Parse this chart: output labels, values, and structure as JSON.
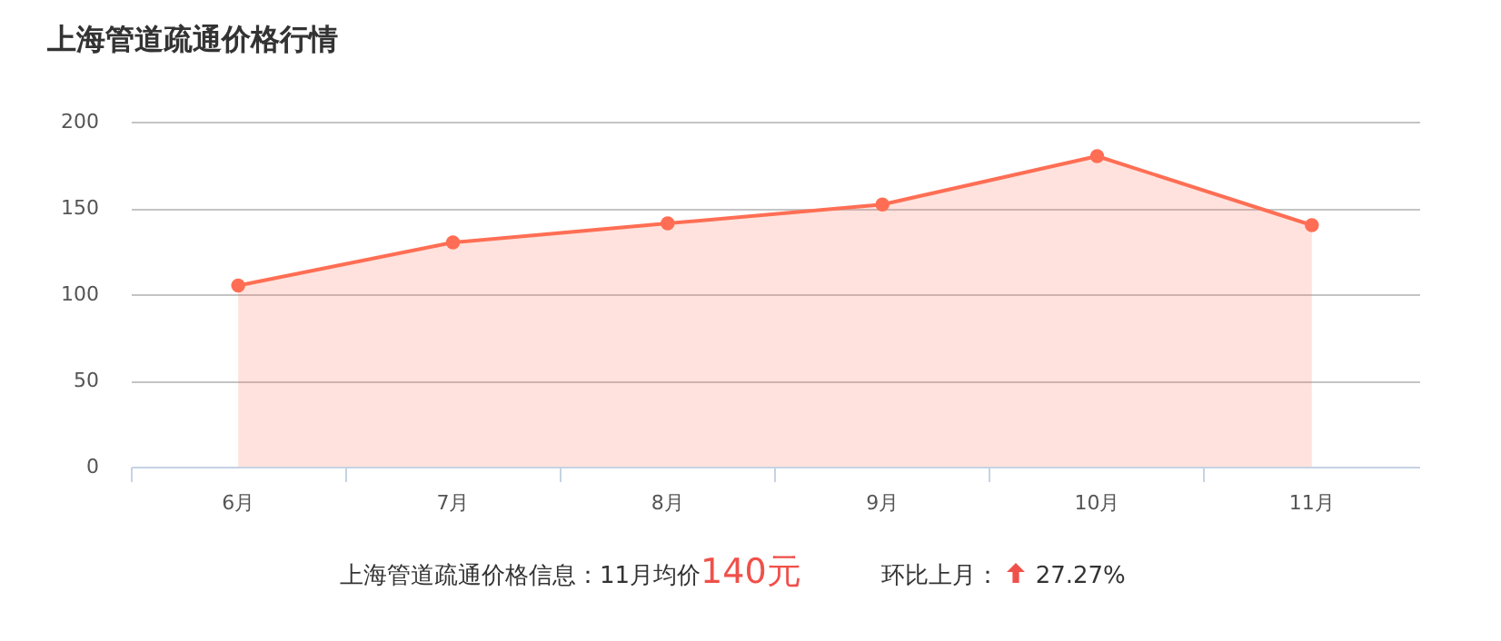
{
  "chart_data": {
    "type": "area",
    "title": "上海管道疏通价格行情",
    "categories": [
      "6月",
      "7月",
      "8月",
      "9月",
      "10月",
      "11月"
    ],
    "series": [
      {
        "color": "#ff6e54",
        "values": [
          105,
          130,
          141,
          152,
          180,
          140
        ]
      }
    ],
    "ylim": [
      0,
      200
    ],
    "yticks": [
      0,
      50,
      100,
      150,
      200
    ],
    "grid": "y",
    "marker": "circle",
    "annotations": [
      "上海管道疏通价格信息：11月均价",
      "140元",
      "环比上月：",
      "27.27%"
    ]
  }
}
